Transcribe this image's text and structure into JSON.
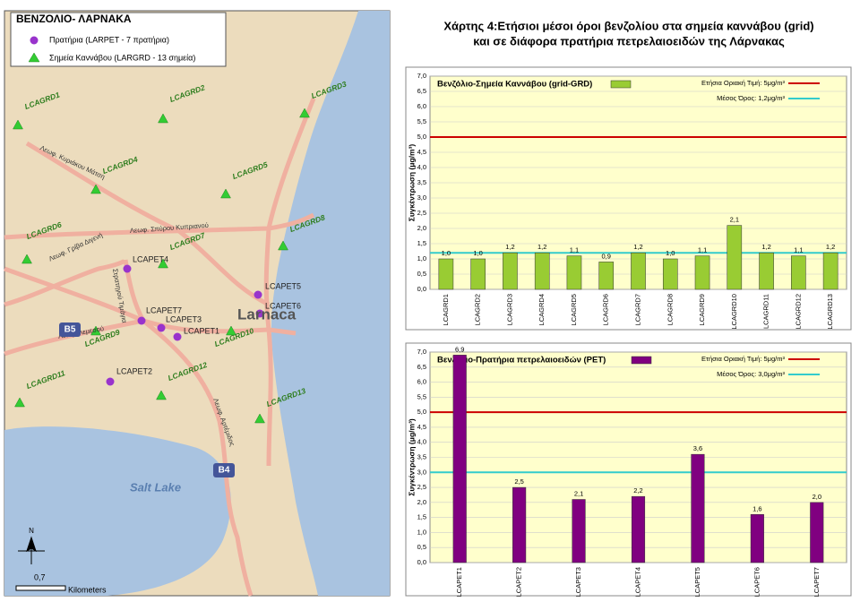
{
  "heading": [
    "Χάρτης 4:Ετήσιοι μέσοι όροι βενζολίου στα σημεία καννάβου (grid)",
    "και σε διάφορα πρατήρια πετρελαιοειδών της Λάρνακας"
  ],
  "map": {
    "title": "ΒΕΝΖΟΛΙΟ- ΛΑΡΝΑΚΑ",
    "legend": [
      "Πρατήρια (LARPET - 7 πρατήρια)",
      "Σημεία Καννάβου (LARGRD - 13 σημεία)"
    ],
    "grid_points": [
      "LCAGRD1",
      "LCAGRD2",
      "LCAGRD3",
      "LCAGRD4",
      "LCAGRD5",
      "LCAGRD6",
      "LCAGRD7",
      "LCAGRD8",
      "LCAGRD9",
      "LCAGRD10",
      "LCAGRD11",
      "LCAGRD12",
      "LCAGRD13"
    ],
    "stations": [
      "LCAPET1",
      "LCAPET2",
      "LCAPET3",
      "LCAPET4",
      "LCAPET5",
      "LCAPET6",
      "LCAPET7"
    ],
    "roads": [
      "Λεωφ. Κυριάκου Μάτση",
      "Λεωφ. Σπύρου Κυπριανού",
      "Λεωφ. Γρίβα Διγενή",
      "Στρατηγού Τιμάγια",
      "Λεωφ. Λεμεσού",
      "Λεωφ. Αρτέμιδος"
    ],
    "places": [
      "Larnaca",
      "Salt Lake"
    ],
    "shields": [
      "B5",
      "B4"
    ],
    "north": "N",
    "scale": "0,7",
    "scale_unit": "Kilometers"
  },
  "chart_data": [
    {
      "type": "bar",
      "ylabel": "Συγκέντρωση (μg/m³)",
      "categories": [
        "LCAGRD1",
        "LCAGRD2",
        "LCAGRD3",
        "LCAGRD4",
        "LCAGRD5",
        "LCAGRD6",
        "LCAGRD7",
        "LCAGRD8",
        "LCAGRD9",
        "LCAGRD10",
        "LCAGRD11",
        "LCAGRD12",
        "LCAGRD13"
      ],
      "series": [
        {
          "name": "Βενζόλιο-Σημεία Καννάβου (grid-GRD)",
          "color": "#99cc33",
          "values": [
            1.0,
            1.0,
            1.2,
            1.2,
            1.1,
            0.9,
            1.2,
            1.0,
            1.1,
            2.1,
            1.2,
            1.1,
            1.2
          ],
          "value_labels": [
            "1,0",
            "1,0",
            "1,2",
            "1,2",
            "1,1",
            "0,9",
            "1,2",
            "1,0",
            "1,1",
            "2,1",
            "1,2",
            "1,1",
            "1,2"
          ]
        }
      ],
      "lines": [
        {
          "name": "Ετήσια Οριακή Τιμή: 5μg/m³",
          "value": 5,
          "color": "#cc0000"
        },
        {
          "name": "Μέσος Όρος: 1,2μg/m³",
          "value": 1.2,
          "color": "#33cccc"
        }
      ],
      "ylim": [
        0,
        7
      ],
      "yticks": [
        {
          "value": 0,
          "label": "0,0"
        },
        {
          "value": 0.5,
          "label": "0,5"
        },
        {
          "value": 1,
          "label": "1,0"
        },
        {
          "value": 1.5,
          "label": "1,5"
        },
        {
          "value": 2,
          "label": "2,0"
        },
        {
          "value": 2.5,
          "label": "2,5"
        },
        {
          "value": 3,
          "label": "3,0"
        },
        {
          "value": 3.5,
          "label": "3,5"
        },
        {
          "value": 4,
          "label": "4,0"
        },
        {
          "value": 4.5,
          "label": "4,5"
        },
        {
          "value": 5,
          "label": "5,0"
        },
        {
          "value": 5.5,
          "label": "5,5"
        },
        {
          "value": 6,
          "label": "6,0"
        },
        {
          "value": 6.5,
          "label": "6,5"
        },
        {
          "value": 7,
          "label": "7,0"
        }
      ]
    },
    {
      "type": "bar",
      "ylabel": "Συγκέντρωση (μg/m³)",
      "categories": [
        "LCAPET1",
        "LCAPET2",
        "LCAPET3",
        "LCAPET4",
        "LCAPET5",
        "LCAPET6",
        "LCAPET7"
      ],
      "series": [
        {
          "name": "Βενζόλιο-Πρατήρια πετρελαιοειδών (PET)",
          "color": "#800080",
          "values": [
            6.9,
            2.5,
            2.1,
            2.2,
            3.6,
            1.6,
            2.0
          ],
          "value_labels": [
            "6,9",
            "2,5",
            "2,1",
            "2,2",
            "3,6",
            "1,6",
            "2,0"
          ]
        }
      ],
      "lines": [
        {
          "name": "Ετήσια Οριακή Τιμή: 5μg/m³",
          "value": 5,
          "color": "#cc0000"
        },
        {
          "name": "Μέσος Όρος: 3,0μg/m³",
          "value": 3.0,
          "color": "#33cccc"
        }
      ],
      "ylim": [
        0,
        7
      ],
      "yticks": [
        {
          "value": 0,
          "label": "0,0"
        },
        {
          "value": 0.5,
          "label": "0,5"
        },
        {
          "value": 1,
          "label": "1,0"
        },
        {
          "value": 1.5,
          "label": "1,5"
        },
        {
          "value": 2,
          "label": "2,0"
        },
        {
          "value": 2.5,
          "label": "2,5"
        },
        {
          "value": 3,
          "label": "3,0"
        },
        {
          "value": 3.5,
          "label": "3,5"
        },
        {
          "value": 4,
          "label": "4,0"
        },
        {
          "value": 4.5,
          "label": "4,5"
        },
        {
          "value": 5,
          "label": "5,0"
        },
        {
          "value": 5.5,
          "label": "5,5"
        },
        {
          "value": 6,
          "label": "6,0"
        },
        {
          "value": 6.5,
          "label": "6,5"
        },
        {
          "value": 7,
          "label": "7,0"
        }
      ]
    }
  ]
}
